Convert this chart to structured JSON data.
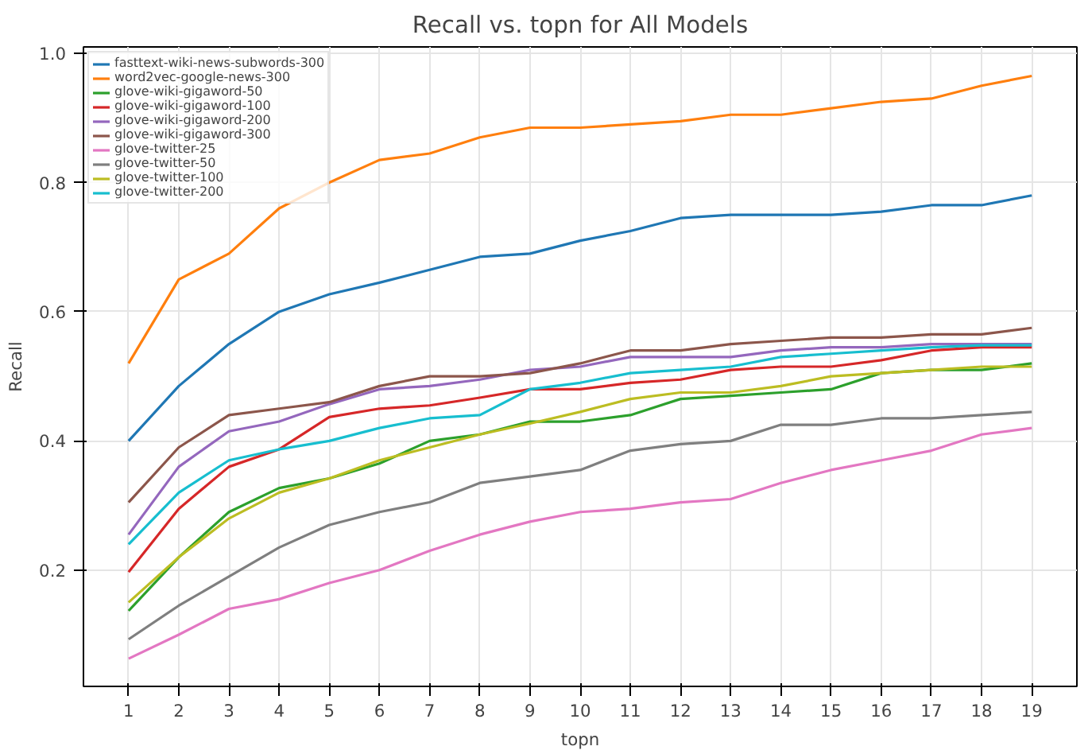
{
  "chart_data": {
    "type": "line",
    "title": "Recall vs. topn for All Models",
    "xlabel": "topn",
    "ylabel": "Recall",
    "x": [
      1,
      2,
      3,
      4,
      5,
      6,
      7,
      8,
      9,
      10,
      11,
      12,
      13,
      14,
      15,
      16,
      17,
      18,
      19
    ],
    "xlim": [
      0.1,
      19.9
    ],
    "xticks": [
      1,
      2,
      3,
      4,
      5,
      6,
      7,
      8,
      9,
      10,
      11,
      12,
      13,
      14,
      15,
      16,
      17,
      18,
      19
    ],
    "ylim": [
      0.02,
      1.01
    ],
    "yticks": [
      {
        "value": 0.2,
        "label": "0.2"
      },
      {
        "value": 0.4,
        "label": "0.4"
      },
      {
        "value": 0.6,
        "label": "0.6"
      },
      {
        "value": 0.8,
        "label": "0.8"
      },
      {
        "value": 1.0,
        "label": "1.0"
      }
    ],
    "grid": true,
    "legend": "top left",
    "line_style": "solid",
    "series": [
      {
        "name": "fasttext-wiki-news-subwords-300",
        "color": "#1f77b4",
        "values": [
          0.4,
          0.485,
          0.55,
          0.6,
          0.627,
          0.645,
          0.665,
          0.685,
          0.69,
          0.71,
          0.725,
          0.745,
          0.75,
          0.75,
          0.75,
          0.755,
          0.765,
          0.765,
          0.78
        ]
      },
      {
        "name": "word2vec-google-news-300",
        "color": "#ff7f0e",
        "values": [
          0.52,
          0.65,
          0.69,
          0.76,
          0.8,
          0.835,
          0.845,
          0.87,
          0.885,
          0.885,
          0.89,
          0.895,
          0.905,
          0.905,
          0.915,
          0.925,
          0.93,
          0.95,
          0.965
        ]
      },
      {
        "name": "glove-wiki-gigaword-50",
        "color": "#2ca02c",
        "values": [
          0.137,
          0.22,
          0.29,
          0.327,
          0.342,
          0.365,
          0.4,
          0.41,
          0.43,
          0.43,
          0.44,
          0.465,
          0.47,
          0.475,
          0.48,
          0.505,
          0.51,
          0.51,
          0.52
        ]
      },
      {
        "name": "glove-wiki-gigaword-100",
        "color": "#d62728",
        "values": [
          0.197,
          0.295,
          0.36,
          0.387,
          0.437,
          0.45,
          0.455,
          0.467,
          0.48,
          0.48,
          0.49,
          0.495,
          0.51,
          0.515,
          0.515,
          0.525,
          0.54,
          0.545,
          0.545
        ]
      },
      {
        "name": "glove-wiki-gigaword-200",
        "color": "#9467bd",
        "values": [
          0.255,
          0.36,
          0.415,
          0.43,
          0.457,
          0.48,
          0.485,
          0.495,
          0.51,
          0.515,
          0.53,
          0.53,
          0.53,
          0.54,
          0.545,
          0.545,
          0.55,
          0.55,
          0.55
        ]
      },
      {
        "name": "glove-wiki-gigaword-300",
        "color": "#8c564b",
        "values": [
          0.305,
          0.39,
          0.44,
          0.45,
          0.46,
          0.485,
          0.5,
          0.5,
          0.505,
          0.52,
          0.54,
          0.54,
          0.55,
          0.555,
          0.56,
          0.56,
          0.565,
          0.565,
          0.575
        ]
      },
      {
        "name": "glove-twitter-25",
        "color": "#e377c2",
        "values": [
          0.063,
          0.1,
          0.14,
          0.155,
          0.18,
          0.2,
          0.23,
          0.255,
          0.275,
          0.29,
          0.295,
          0.305,
          0.31,
          0.335,
          0.355,
          0.37,
          0.385,
          0.41,
          0.42
        ]
      },
      {
        "name": "glove-twitter-50",
        "color": "#7f7f7f",
        "values": [
          0.093,
          0.145,
          0.19,
          0.235,
          0.27,
          0.29,
          0.305,
          0.335,
          0.345,
          0.355,
          0.385,
          0.395,
          0.4,
          0.425,
          0.425,
          0.435,
          0.435,
          0.44,
          0.445
        ]
      },
      {
        "name": "glove-twitter-100",
        "color": "#bcbd22",
        "values": [
          0.15,
          0.22,
          0.28,
          0.32,
          0.342,
          0.37,
          0.39,
          0.41,
          0.427,
          0.445,
          0.465,
          0.475,
          0.475,
          0.485,
          0.5,
          0.505,
          0.51,
          0.515,
          0.515
        ]
      },
      {
        "name": "glove-twitter-200",
        "color": "#17becf",
        "values": [
          0.24,
          0.32,
          0.37,
          0.387,
          0.4,
          0.42,
          0.435,
          0.44,
          0.48,
          0.49,
          0.505,
          0.51,
          0.515,
          0.53,
          0.535,
          0.54,
          0.545,
          0.548,
          0.548
        ]
      }
    ]
  }
}
